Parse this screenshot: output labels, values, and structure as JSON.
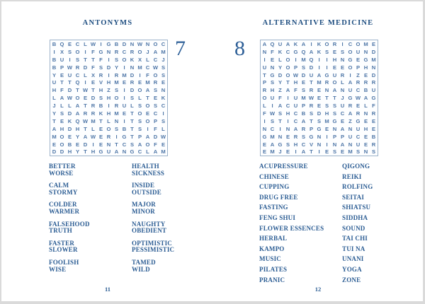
{
  "colors": {
    "title": "#1d4d80",
    "grid_letters": "#4e76a7",
    "grid_border": "#9db3ca",
    "word_text": "#2b5c93",
    "puzzle_number": "#2d5f97",
    "frame": "#dadada"
  },
  "pages": [
    {
      "title": "ANTONYMS",
      "puzzle_number": "7",
      "page_number": "11",
      "grid": [
        "BQECLWIGBDNWNOC",
        "IXSOIFGNRCROJAM",
        "BUISTTFISOKXLCJ",
        "BPWRDFSDYINMCWS",
        "YEUCLXRIRMDIFOS",
        "UTTQIEVHMEREMRE",
        "HFDTWTHZSIDOASN",
        "LAWOEDSHOISLTEK",
        "JLLATRBIRULSOSC",
        "YSDARRKHMETOECI",
        "TEKQWMTLNITSOPS",
        "AHDHTLEOSBTSIFL",
        "MOEYAWERIGTPADW",
        "EOBEDIENTCSAOFE",
        "DDHYTHGUANGCLAM"
      ],
      "words_col1": [
        [
          "BETTER",
          "WORSE"
        ],
        [
          "CALM",
          "STORMY"
        ],
        [
          "COLDER",
          "WARMER"
        ],
        [
          "FALSEHOOD",
          "TRUTH"
        ],
        [
          "FASTER",
          "SLOWER"
        ],
        [
          "FOOLISH",
          "WISE"
        ]
      ],
      "words_col2": [
        [
          "HEALTH",
          "SICKNESS"
        ],
        [
          "INSIDE",
          "OUTSIDE"
        ],
        [
          "MAJOR",
          "MINOR"
        ],
        [
          "NAUGHTY",
          "OBEDIENT"
        ],
        [
          "OPTIMISTIC",
          "PESSIMISTIC"
        ],
        [
          "TAMED",
          "WILD"
        ]
      ]
    },
    {
      "title": "ALTERNATIVE MEDICINE",
      "puzzle_number": "8",
      "page_number": "12",
      "grid": [
        "AQUAKAIKORICOME",
        "NFKCGQAKSESOUND",
        "IELOIMQIIHNGEGM",
        "UNYOPSDIIEEOPHN",
        "TGDOWDUAGURIZED",
        "PSYTHETMROLARRR",
        "RHZAFSRENANUCBU",
        "OUFIUMWETTJGWAG",
        "LIACUPRESSURELF",
        "FWSHCBSDHSCARNR",
        "ISTICATSMGEZGEE",
        "NCINARPGENANUHE",
        "GMNERSGNIPPUCEB",
        "EAGSHCVNINANUER",
        "EMJEIATIESEMSNS"
      ],
      "words_col1": [
        [
          "ACUPRESSURE"
        ],
        [
          "CHINESE"
        ],
        [
          "CUPPING"
        ],
        [
          "DRUG FREE"
        ],
        [
          "FASTING"
        ],
        [
          "FENG SHUI"
        ],
        [
          "FLOWER ESSENCES"
        ],
        [
          "HERBAL"
        ],
        [
          "KAMPO"
        ],
        [
          "MUSIC"
        ],
        [
          "PILATES"
        ],
        [
          "PRANIC"
        ]
      ],
      "words_col2": [
        [
          "QIGONG"
        ],
        [
          "REIKI"
        ],
        [
          "ROLFING"
        ],
        [
          "SEITAI"
        ],
        [
          "SHIATSU"
        ],
        [
          "SIDDHA"
        ],
        [
          "SOUND"
        ],
        [
          "TAI CHI"
        ],
        [
          "TUI NA"
        ],
        [
          "UNANI"
        ],
        [
          "YOGA"
        ],
        [
          "ZONE"
        ]
      ]
    }
  ]
}
